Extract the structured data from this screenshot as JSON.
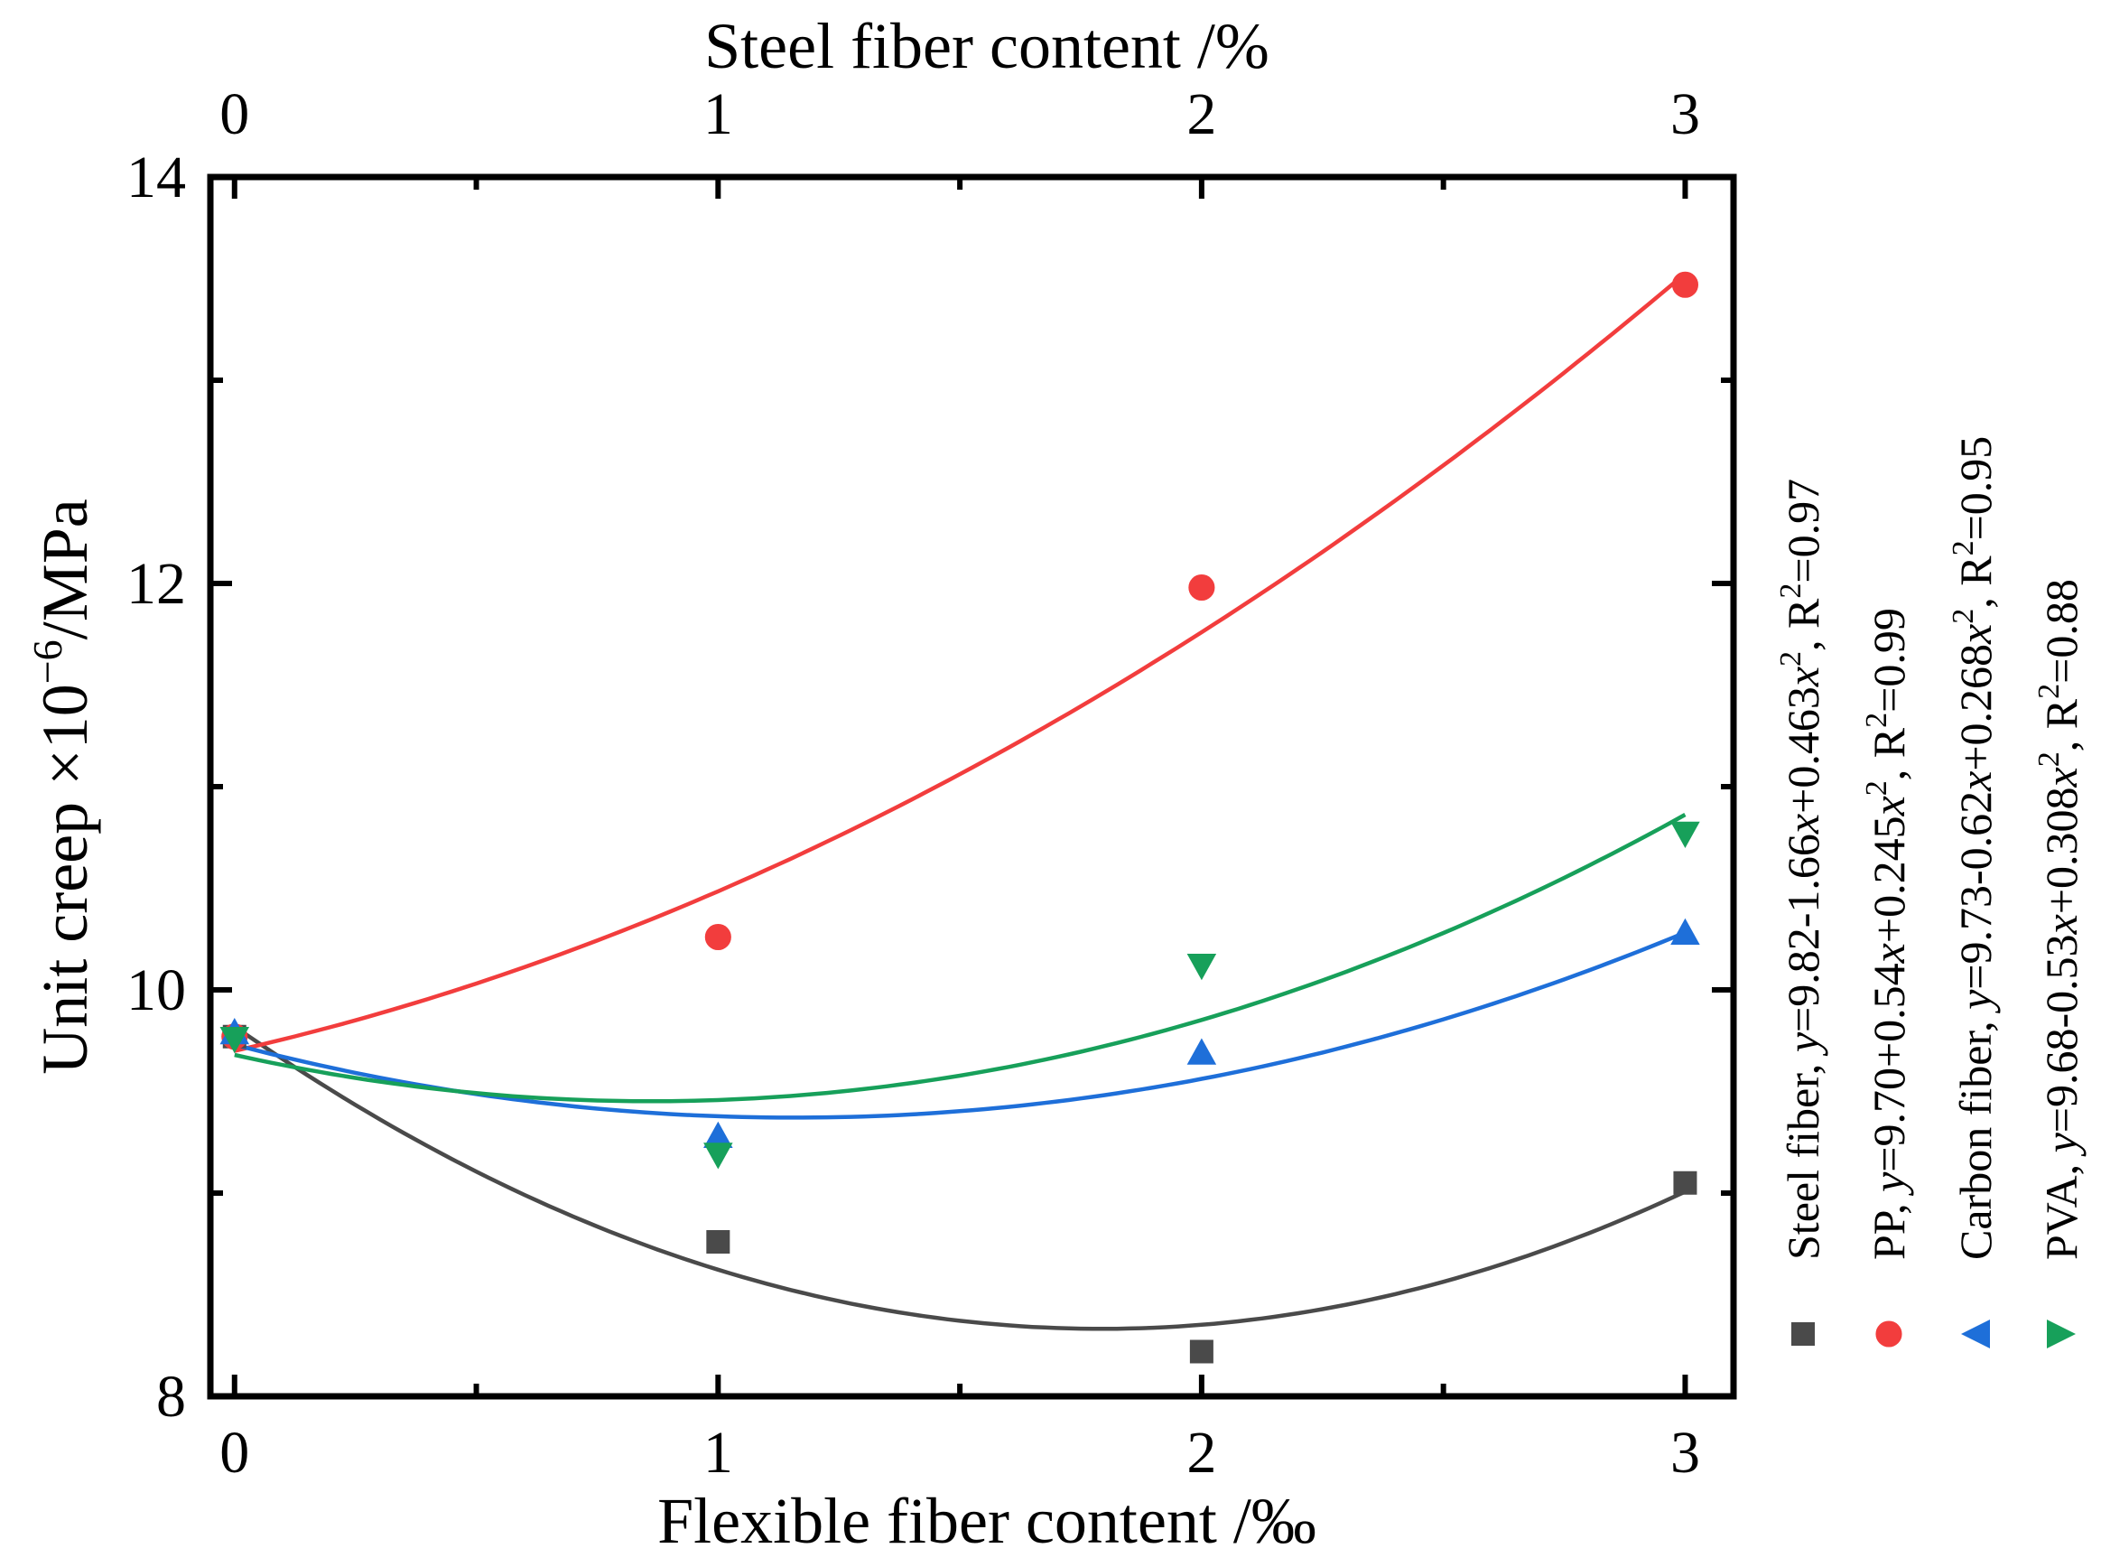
{
  "chart_data": {
    "type": "scatter",
    "title": "",
    "top_xlabel": "Steel fiber content /%",
    "xlabel": "Flexible fiber content /‰",
    "ylabel": "Unit creep ×10",
    "ylabel_sup": "−6",
    "ylabel_suffix": "/MPa",
    "xlim": [
      -0.05,
      3.1
    ],
    "ylim": [
      8,
      14
    ],
    "x_ticks": [
      0,
      1,
      2,
      3
    ],
    "x_tick_labels": [
      "0",
      "1",
      "2",
      "3"
    ],
    "top_x_tick_labels": [
      "0",
      "1",
      "2",
      "3"
    ],
    "y_ticks": [
      8,
      10,
      12,
      14
    ],
    "y_tick_labels": [
      "8",
      "10",
      "12",
      "14"
    ],
    "x_minor_ticks": [
      0.5,
      1.5,
      2.5
    ],
    "y_minor_ticks": [
      9,
      11,
      13
    ],
    "grid": false,
    "legend_placement": "right, vertical",
    "series": [
      {
        "name": "Steel fiber",
        "marker": "square",
        "color": "#4a4a4a",
        "x": [
          0,
          1,
          2,
          3
        ],
        "y": [
          9.77,
          8.76,
          8.22,
          9.05
        ],
        "fit": {
          "a": 9.82,
          "b": -1.66,
          "c": 0.463
        },
        "legend": {
          "prefix": "Steel fiber, ",
          "var": "y",
          "eq": "=9.82-1.66",
          "xvar": "x",
          "eq2": "+0.463",
          "xvar2": "x",
          "sup": "2",
          "r": ", R",
          "r_sup": "2",
          "r_val": "=0.97"
        }
      },
      {
        "name": "PP",
        "marker": "circle",
        "color": "#f23d3d",
        "x": [
          0,
          1,
          2,
          3
        ],
        "y": [
          9.77,
          10.26,
          11.98,
          13.47
        ],
        "fit": {
          "a": 9.7,
          "b": 0.54,
          "c": 0.245
        },
        "legend": {
          "prefix": "PP, ",
          "var": "y",
          "eq": "=9.70+0.54",
          "xvar": "x",
          "eq2": "+0.245",
          "xvar2": "x",
          "sup": "2",
          "r": ", R",
          "r_sup": "2",
          "r_val": "=0.99"
        }
      },
      {
        "name": "Carbon fiber",
        "marker": "triangle-up",
        "color": "#1e6fd9",
        "x": [
          0,
          1,
          2,
          3
        ],
        "y": [
          9.79,
          9.28,
          9.69,
          10.28
        ],
        "fit": {
          "a": 9.73,
          "b": -0.62,
          "c": 0.268
        },
        "legend": {
          "prefix": "Carbon fiber, ",
          "var": "y",
          "eq": "=9.73-0.62",
          "xvar": "x",
          "eq2": "+0.268",
          "xvar2": "x",
          "sup": "2",
          "r": ", R",
          "r_sup": "2",
          "r_val": "=0.95"
        }
      },
      {
        "name": "PVA",
        "marker": "triangle-down",
        "color": "#17a05a",
        "x": [
          0,
          1,
          2,
          3
        ],
        "y": [
          9.76,
          9.19,
          10.12,
          10.77
        ],
        "fit": {
          "a": 9.68,
          "b": -0.53,
          "c": 0.308
        },
        "legend": {
          "prefix": "PVA, ",
          "var": "y",
          "eq": "=9.68-0.53",
          "xvar": "x",
          "eq2": "+0.308",
          "xvar2": "x",
          "sup": "2",
          "r": ", R",
          "r_sup": "2",
          "r_val": "=0.88"
        }
      }
    ]
  }
}
